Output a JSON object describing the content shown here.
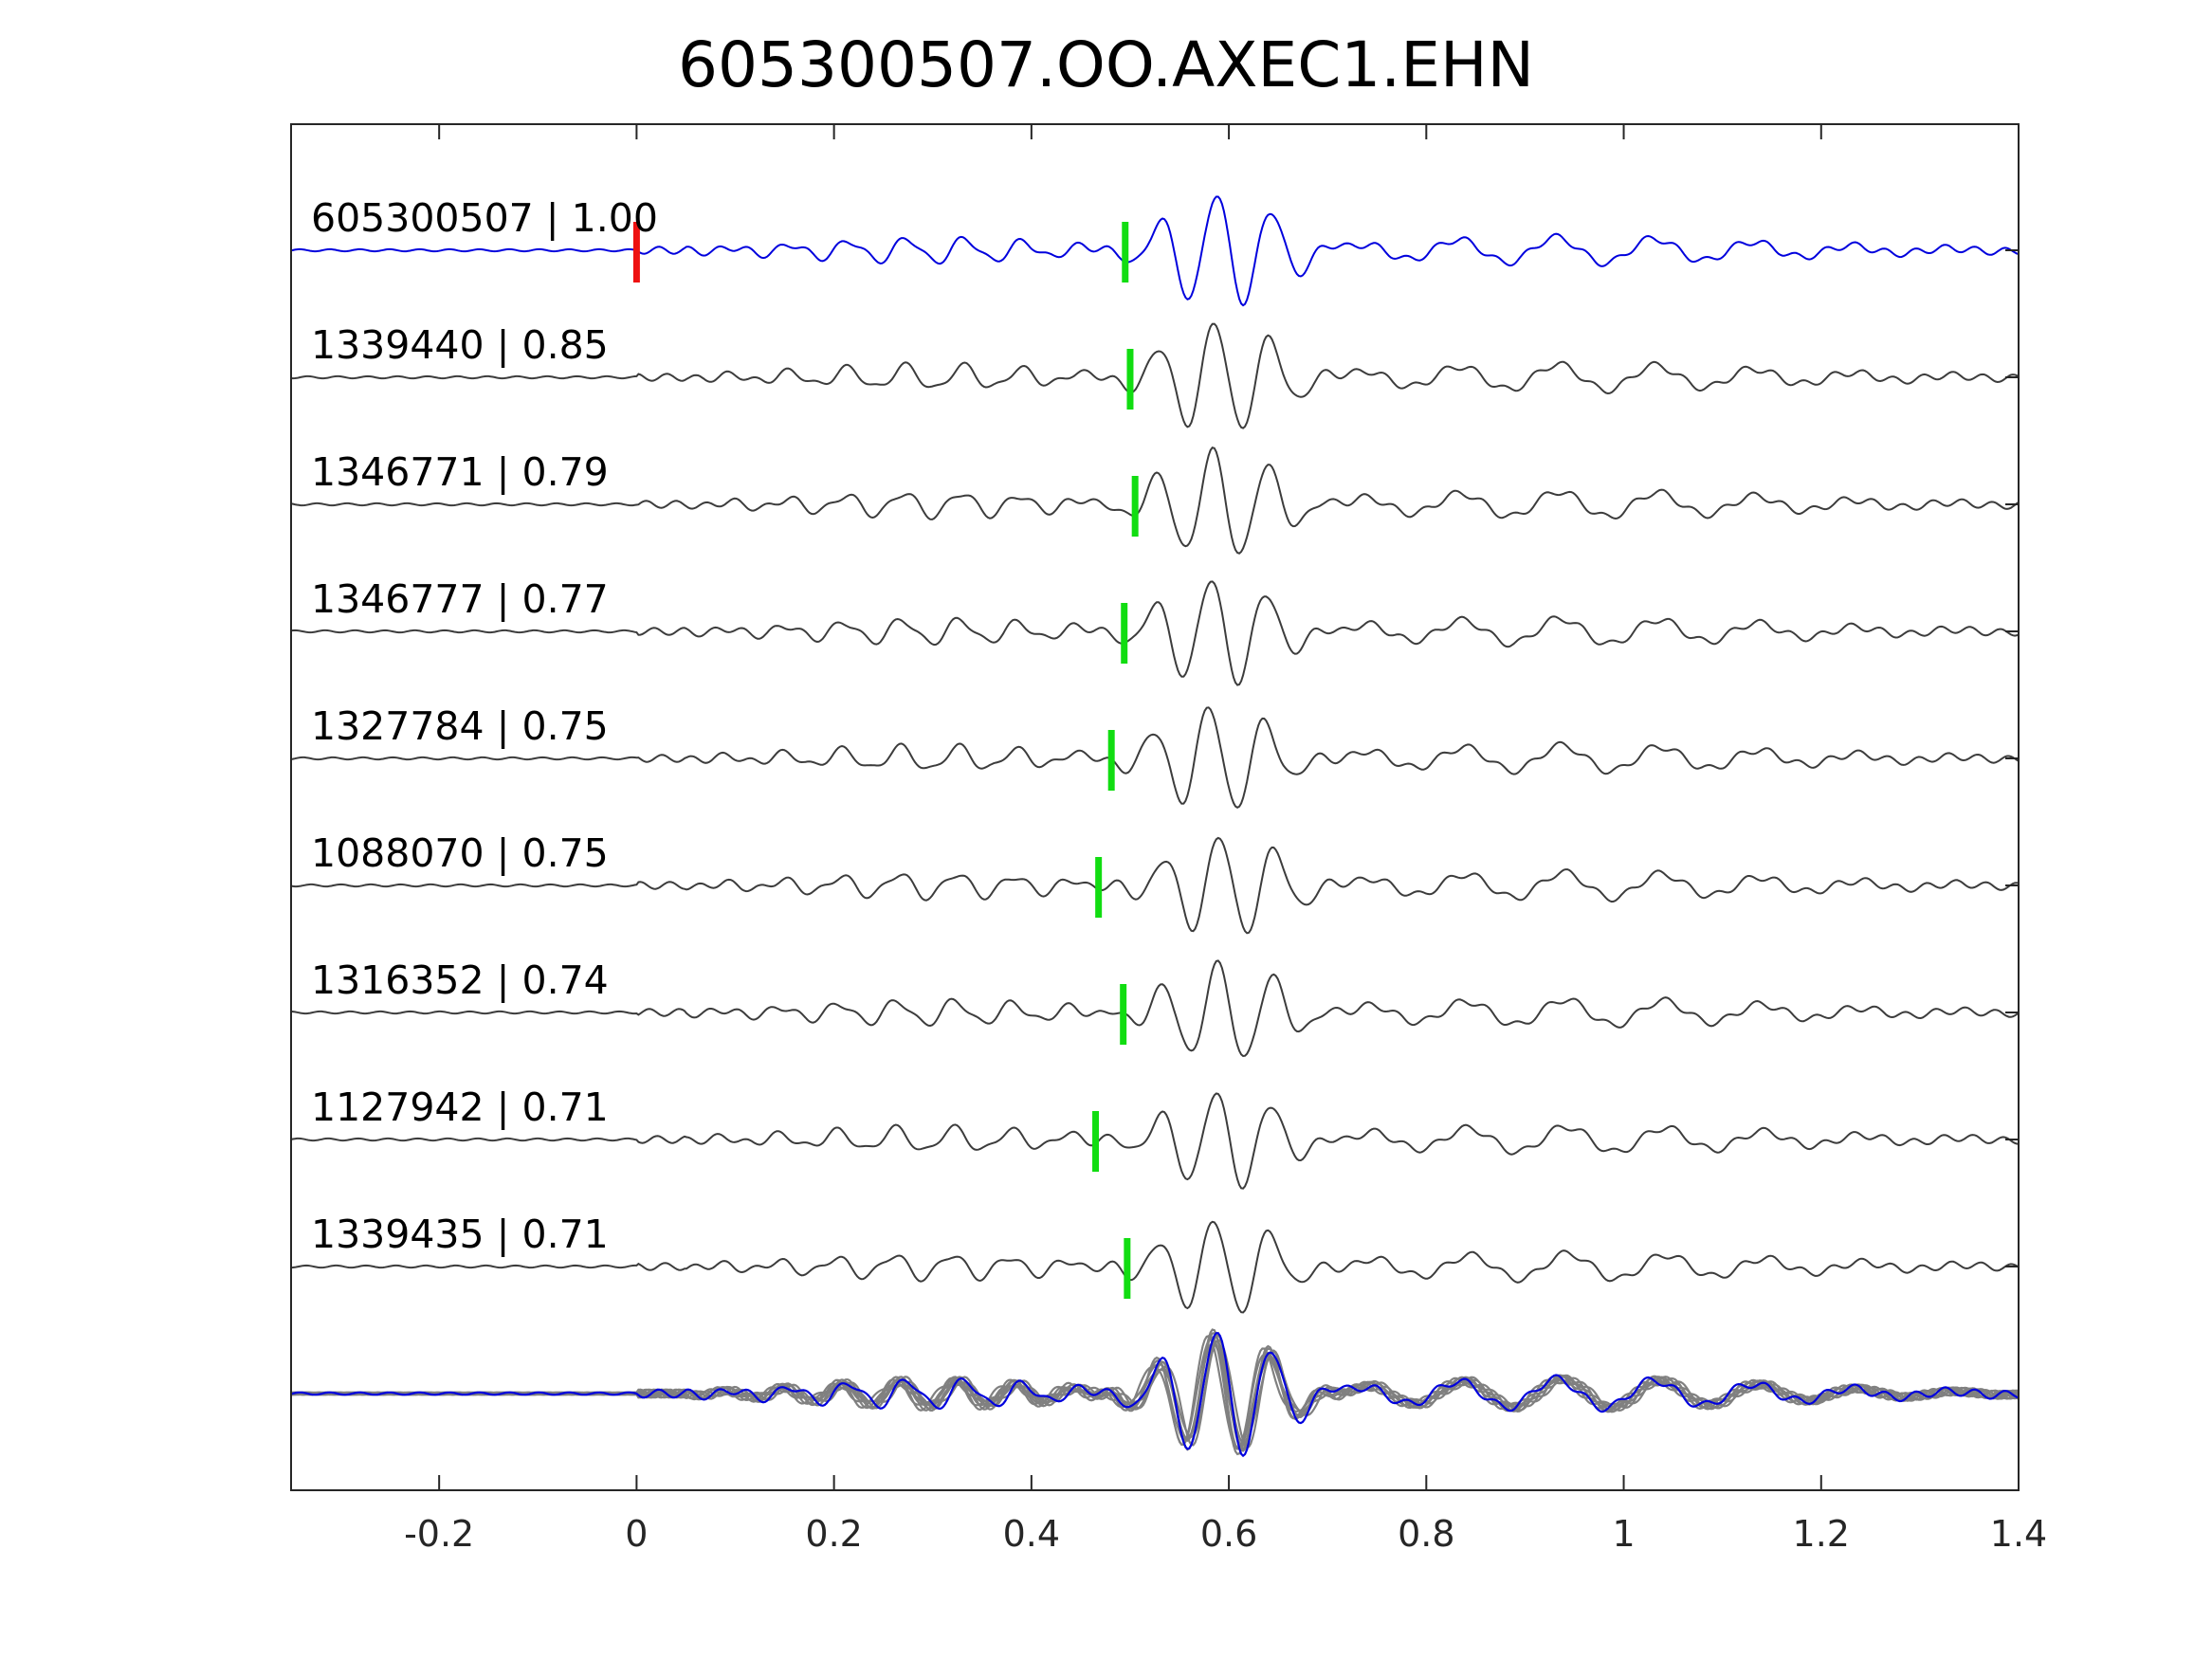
{
  "chart_data": {
    "type": "line",
    "title": "605300507.OO.AXEC1.EHN",
    "xlabel": "",
    "ylabel": "",
    "xlim": [
      -0.35,
      1.4
    ],
    "xticks": [
      -0.2,
      0,
      0.2,
      0.4,
      0.6,
      0.8,
      1,
      1.2,
      1.4
    ],
    "xtick_labels": [
      "-0.2",
      "0",
      "0.2",
      "0.4",
      "0.6",
      "0.8",
      "1",
      "1.2",
      "1.4"
    ],
    "grid": false,
    "colors": {
      "reference": "#0000dd",
      "matches": "#3c3c3c",
      "stack": "#808080",
      "pick_reference": "#ee1111",
      "pick_match": "#11dd11",
      "axes": "#262626"
    },
    "origin_pick_time": 0.0,
    "series": [
      {
        "label": "605300507 | 1.00",
        "id": "605300507",
        "cc": "1.00",
        "pick_time": 0.495,
        "reference": true
      },
      {
        "label": "1339440 | 0.85",
        "id": "1339440",
        "cc": "0.85",
        "pick_time": 0.5,
        "reference": false
      },
      {
        "label": "1346771 | 0.79",
        "id": "1346771",
        "cc": "0.79",
        "pick_time": 0.505,
        "reference": false
      },
      {
        "label": "1346777 | 0.77",
        "id": "1346777",
        "cc": "0.77",
        "pick_time": 0.494,
        "reference": false
      },
      {
        "label": "1327784 | 0.75",
        "id": "1327784",
        "cc": "0.75",
        "pick_time": 0.481,
        "reference": false
      },
      {
        "label": "1088070 | 0.75",
        "id": "1088070",
        "cc": "0.75",
        "pick_time": 0.468,
        "reference": false
      },
      {
        "label": "1316352 | 0.74",
        "id": "1316352",
        "cc": "0.74",
        "pick_time": 0.493,
        "reference": false
      },
      {
        "label": "1127942 | 0.71",
        "id": "1127942",
        "cc": "0.71",
        "pick_time": 0.465,
        "reference": false
      },
      {
        "label": "1339435 | 0.71",
        "id": "1339435",
        "cc": "0.71",
        "pick_time": 0.497,
        "reference": false
      }
    ],
    "stack": {
      "label": "",
      "overlay": true
    }
  }
}
